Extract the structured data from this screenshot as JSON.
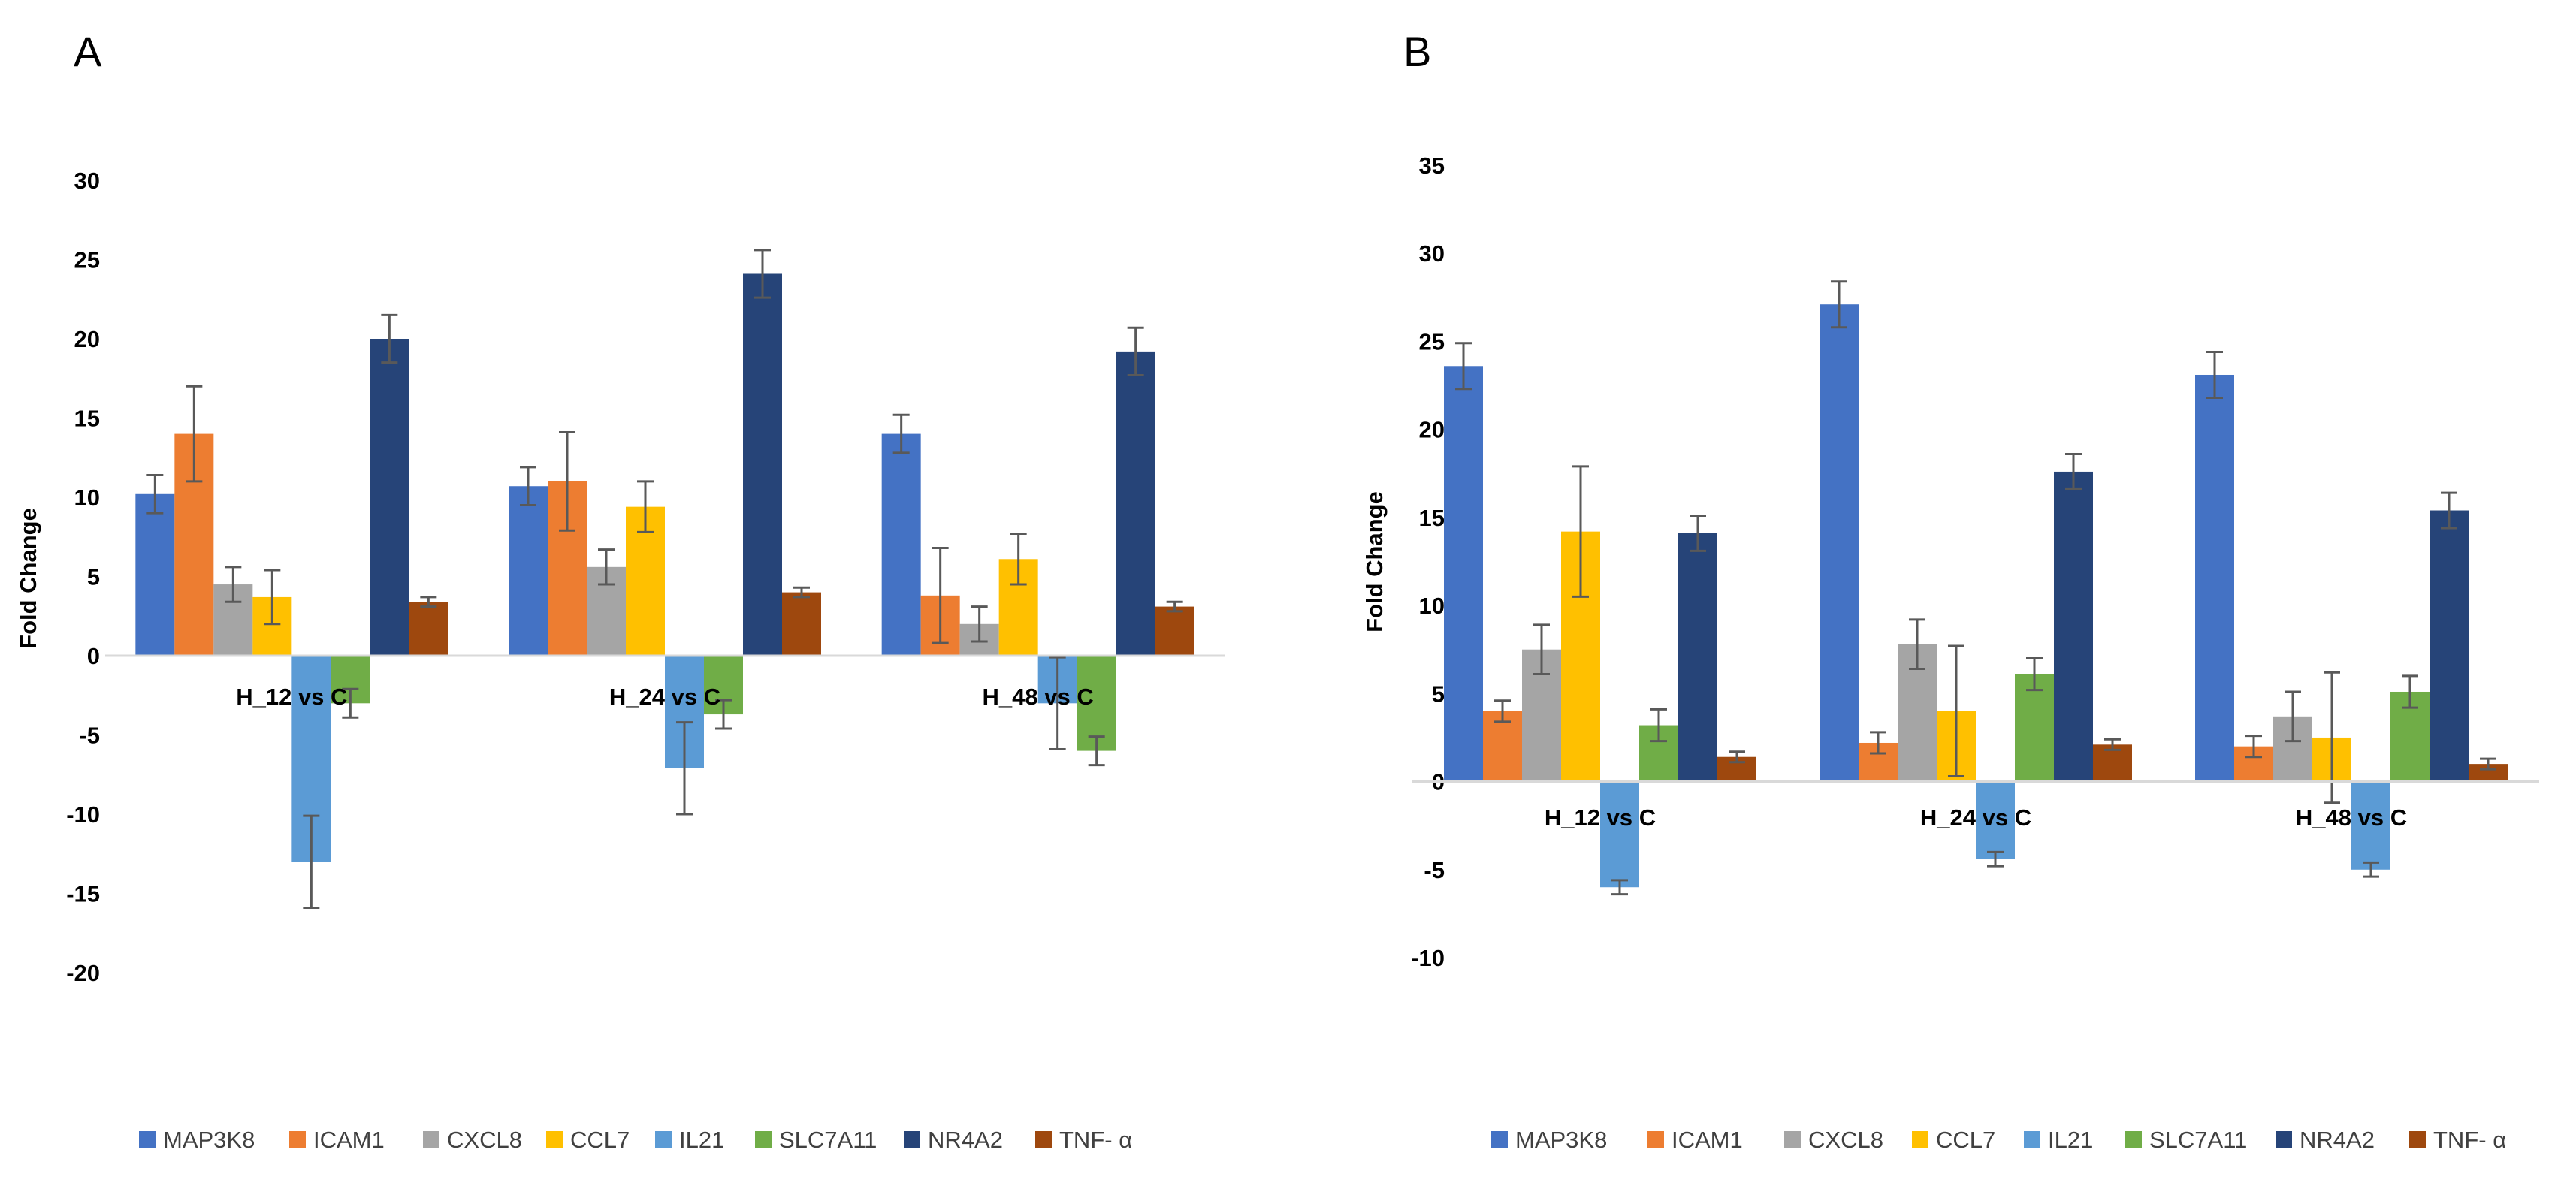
{
  "chart_data": [
    {
      "type": "bar",
      "panel": "A",
      "ylabel": "Fold Change",
      "ylim": [
        -20,
        30
      ],
      "yticks": [
        30,
        25,
        20,
        15,
        10,
        5,
        0,
        -5,
        -10,
        -15,
        -20
      ],
      "categories": [
        "H_12 vs C",
        "H_24 vs C",
        "H_48 vs C"
      ],
      "series": [
        {
          "name": "MAP3K8",
          "color": "#4472C4",
          "values": [
            10.2,
            10.7,
            14.0
          ],
          "errors": [
            1.2,
            1.2,
            1.2
          ]
        },
        {
          "name": "ICAM1",
          "color": "#ED7D31",
          "values": [
            14.0,
            11.0,
            3.8
          ],
          "errors": [
            3.0,
            3.1,
            3.0
          ]
        },
        {
          "name": "CXCL8",
          "color": "#A5A5A5",
          "values": [
            4.5,
            5.6,
            2.0
          ],
          "errors": [
            1.1,
            1.1,
            1.1
          ]
        },
        {
          "name": "CCL7",
          "color": "#FFC000",
          "values": [
            3.7,
            9.4,
            6.1
          ],
          "errors": [
            1.7,
            1.6,
            1.6
          ]
        },
        {
          "name": "IL21",
          "color": "#5B9BD5",
          "values": [
            -13.0,
            -7.1,
            -3.0
          ],
          "errors": [
            2.9,
            2.9,
            2.9
          ]
        },
        {
          "name": "SLC7A11",
          "color": "#70AD47",
          "values": [
            -3.0,
            -3.7,
            -6.0
          ],
          "errors": [
            0.9,
            0.9,
            0.9
          ]
        },
        {
          "name": "NR4A2",
          "color": "#264478",
          "values": [
            20.0,
            24.1,
            19.2
          ],
          "errors": [
            1.5,
            1.5,
            1.5
          ]
        },
        {
          "name": "TNF- α",
          "color": "#9E480E",
          "values": [
            3.4,
            4.0,
            3.1
          ],
          "errors": [
            0.3,
            0.3,
            0.3
          ]
        }
      ]
    },
    {
      "type": "bar",
      "panel": "B",
      "ylabel": "Fold Change",
      "ylim": [
        -10,
        35
      ],
      "yticks": [
        35,
        30,
        25,
        20,
        15,
        10,
        5,
        0,
        -5,
        -10
      ],
      "categories": [
        "H_12 vs C",
        "H_24 vs C",
        "H_48 vs C"
      ],
      "series": [
        {
          "name": "MAP3K8",
          "color": "#4472C4",
          "values": [
            23.6,
            27.1,
            23.1
          ],
          "errors": [
            1.3,
            1.3,
            1.3
          ]
        },
        {
          "name": "ICAM1",
          "color": "#ED7D31",
          "values": [
            4.0,
            2.2,
            2.0
          ],
          "errors": [
            0.6,
            0.6,
            0.6
          ]
        },
        {
          "name": "CXCL8",
          "color": "#A5A5A5",
          "values": [
            7.5,
            7.8,
            3.7
          ],
          "errors": [
            1.4,
            1.4,
            1.4
          ]
        },
        {
          "name": "CCL7",
          "color": "#FFC000",
          "values": [
            14.2,
            4.0,
            2.5
          ],
          "errors": [
            3.7,
            3.7,
            3.7
          ]
        },
        {
          "name": "IL21",
          "color": "#5B9BD5",
          "values": [
            -6.0,
            -4.4,
            -5.0
          ],
          "errors": [
            0.4,
            0.4,
            0.4
          ]
        },
        {
          "name": "SLC7A11",
          "color": "#70AD47",
          "values": [
            3.2,
            6.1,
            5.1
          ],
          "errors": [
            0.9,
            0.9,
            0.9
          ]
        },
        {
          "name": "NR4A2",
          "color": "#264478",
          "values": [
            14.1,
            17.6,
            15.4
          ],
          "errors": [
            1.0,
            1.0,
            1.0
          ]
        },
        {
          "name": "TNF- α",
          "color": "#9E480E",
          "values": [
            1.4,
            2.1,
            1.0
          ],
          "errors": [
            0.3,
            0.3,
            0.3
          ]
        }
      ]
    }
  ]
}
